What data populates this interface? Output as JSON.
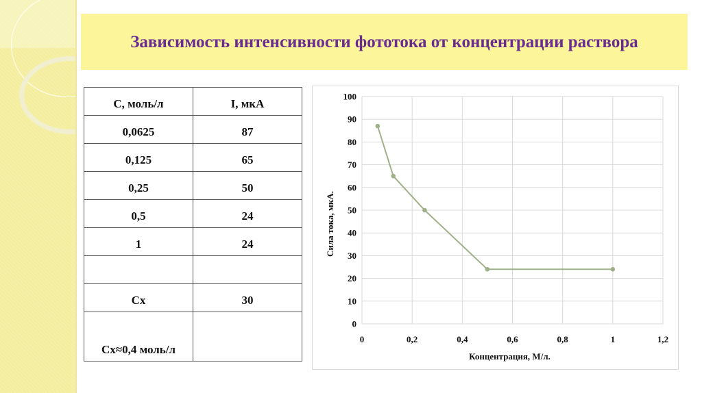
{
  "slide": {
    "title": "Зависимость интенсивности фототока от концентрации раствора",
    "colors": {
      "banner": "#fdf59a",
      "title_text": "#6b2c91",
      "strip": "#f6f0a6",
      "series": "#a0b18a"
    }
  },
  "table": {
    "headers": [
      "С, моль/л",
      "I, мкА"
    ],
    "rows": [
      [
        "0,0625",
        "87"
      ],
      [
        "0,125",
        "65"
      ],
      [
        "0,25",
        "50"
      ],
      [
        "0,5",
        "24"
      ],
      [
        "1",
        "24"
      ],
      [
        "",
        ""
      ],
      [
        "Сх",
        "30"
      ],
      [
        "Сх≈0,4 моль/л",
        ""
      ]
    ]
  },
  "chart_data": {
    "type": "line",
    "title": "",
    "xlabel": "Концентрация, М/л.",
    "ylabel": "Сила тока, мкА.",
    "x": [
      0.0625,
      0.125,
      0.25,
      0.5,
      1
    ],
    "series": [
      {
        "name": "I, мкА",
        "values": [
          87,
          65,
          50,
          24,
          24
        ]
      }
    ],
    "xlim": [
      0,
      1.2
    ],
    "ylim": [
      0,
      100
    ],
    "x_ticks": [
      "0",
      "0,2",
      "0,4",
      "0,6",
      "0,8",
      "1",
      "1,2"
    ],
    "y_ticks": [
      "0",
      "10",
      "20",
      "30",
      "40",
      "50",
      "60",
      "70",
      "80",
      "90",
      "100"
    ],
    "grid": true,
    "legend": "none",
    "markers": true
  }
}
